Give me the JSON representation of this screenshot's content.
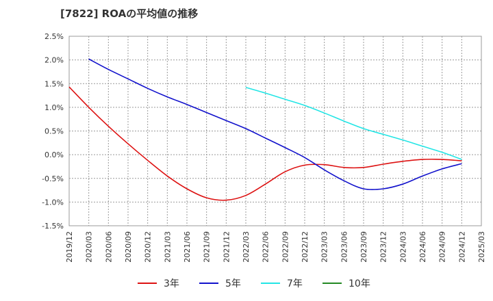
{
  "chart_data": {
    "type": "line",
    "title": "[7822]  ROAの平均値の推移",
    "xlabel": "",
    "ylabel": "",
    "ylim": [
      -1.5,
      2.5
    ],
    "y_ticks": [
      "2.5%",
      "2.0%",
      "1.5%",
      "1.0%",
      "0.5%",
      "0.0%",
      "-0.5%",
      "-1.0%",
      "-1.5%"
    ],
    "y_tick_values": [
      2.5,
      2.0,
      1.5,
      1.0,
      0.5,
      0.0,
      -0.5,
      -1.0,
      -1.5
    ],
    "x_ticks": [
      "2019/12",
      "2020/03",
      "2020/06",
      "2020/09",
      "2020/12",
      "2021/03",
      "2021/06",
      "2021/09",
      "2021/12",
      "2022/03",
      "2022/06",
      "2022/09",
      "2022/12",
      "2023/03",
      "2023/06",
      "2023/09",
      "2023/12",
      "2024/03",
      "2024/06",
      "2024/09",
      "2024/12",
      "2025/03"
    ],
    "grid": true,
    "legend_position": "bottom",
    "series": [
      {
        "name": "3年",
        "color": "#dd1111",
        "values": [
          1.43,
          1.0,
          0.6,
          0.23,
          -0.12,
          -0.45,
          -0.72,
          -0.91,
          -0.96,
          -0.86,
          -0.62,
          -0.36,
          -0.22,
          -0.21,
          -0.27,
          -0.27,
          -0.2,
          -0.14,
          -0.1,
          -0.1,
          -0.13
        ]
      },
      {
        "name": "5年",
        "color": "#1111cc",
        "values": [
          null,
          2.02,
          1.8,
          1.6,
          1.4,
          1.22,
          1.06,
          0.89,
          0.72,
          0.55,
          0.35,
          0.15,
          -0.06,
          -0.32,
          -0.55,
          -0.72,
          -0.72,
          -0.62,
          -0.45,
          -0.3,
          -0.19
        ]
      },
      {
        "name": "7年",
        "color": "#22e5e5",
        "values": [
          null,
          null,
          null,
          null,
          null,
          null,
          null,
          null,
          null,
          1.42,
          1.3,
          1.17,
          1.04,
          0.88,
          0.71,
          0.55,
          0.43,
          0.31,
          0.18,
          0.05,
          -0.1
        ]
      },
      {
        "name": "10年",
        "color": "#228822",
        "values": [
          null,
          null,
          null,
          null,
          null,
          null,
          null,
          null,
          null,
          null,
          null,
          null,
          null,
          null,
          null,
          null,
          null,
          null,
          null,
          null,
          null
        ]
      }
    ]
  }
}
